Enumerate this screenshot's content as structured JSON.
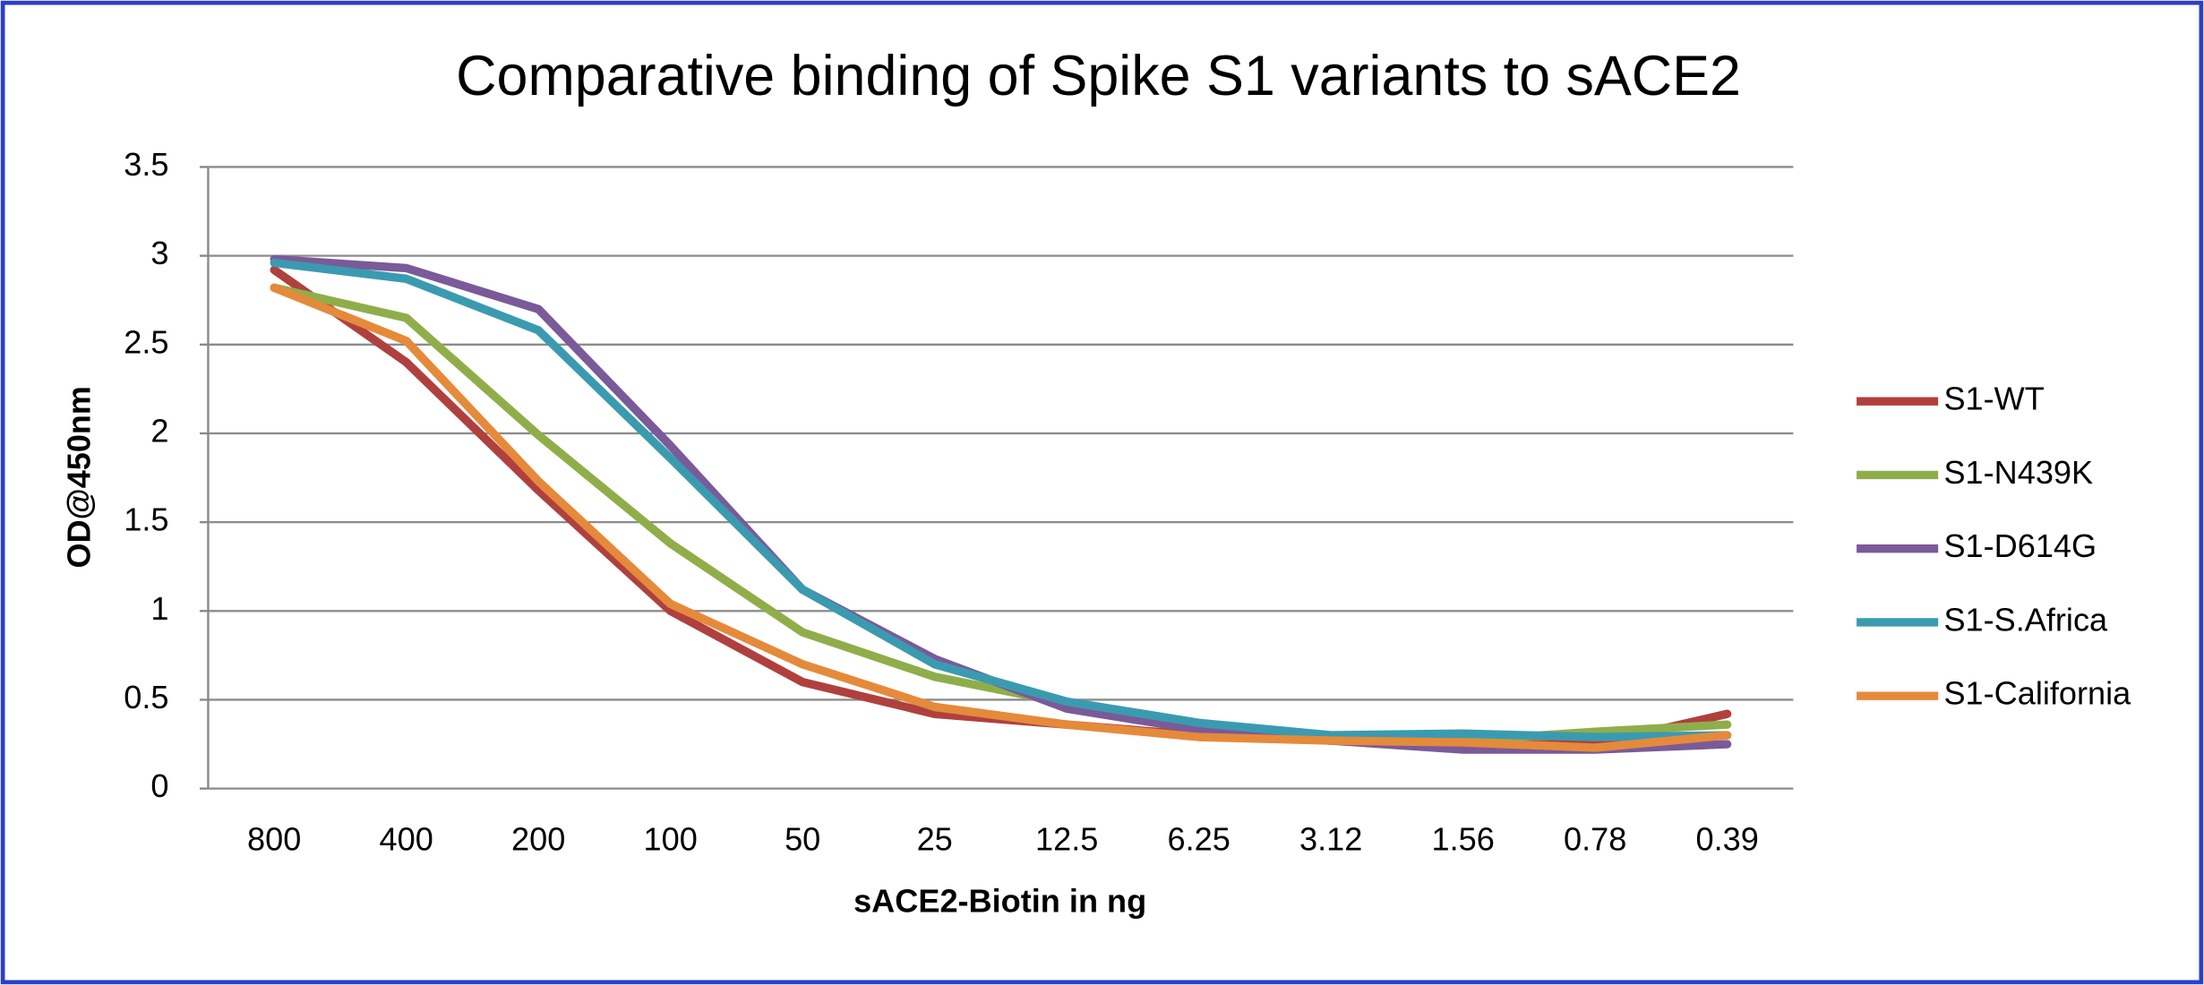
{
  "chart_data": {
    "type": "line",
    "title": "Comparative binding of Spike S1 variants to sACE2",
    "x_label": "sACE2-Biotin in ng",
    "y_label": "OD@450nm",
    "categories": [
      "800",
      "400",
      "200",
      "100",
      "50",
      "25",
      "12.5",
      "6.25",
      "3.12",
      "1.56",
      "0.78",
      "0.39"
    ],
    "series": [
      {
        "name": "S1-WT",
        "color": "#b0403e",
        "values": [
          2.92,
          2.4,
          1.68,
          1.0,
          0.6,
          0.42,
          0.36,
          0.3,
          0.27,
          0.25,
          0.25,
          0.42
        ]
      },
      {
        "name": "S1-N439K",
        "color": "#8fae4a",
        "values": [
          2.82,
          2.65,
          1.99,
          1.38,
          0.88,
          0.63,
          0.48,
          0.33,
          0.28,
          0.27,
          0.32,
          0.36
        ]
      },
      {
        "name": "S1-D614G",
        "color": "#7a5a99",
        "values": [
          2.98,
          2.93,
          2.7,
          1.93,
          1.12,
          0.73,
          0.45,
          0.33,
          0.27,
          0.22,
          0.22,
          0.25
        ]
      },
      {
        "name": "S1-S.Africa",
        "color": "#3a9bb0",
        "values": [
          2.96,
          2.87,
          2.58,
          1.86,
          1.12,
          0.7,
          0.49,
          0.37,
          0.3,
          0.31,
          0.29,
          0.3
        ]
      },
      {
        "name": "S1-California",
        "color": "#e58a3a",
        "values": [
          2.82,
          2.52,
          1.73,
          1.04,
          0.7,
          0.46,
          0.36,
          0.29,
          0.27,
          0.26,
          0.23,
          0.3
        ]
      }
    ],
    "ylim": [
      0,
      3.5
    ],
    "yticks": [
      0,
      0.5,
      1,
      1.5,
      2,
      2.5,
      3,
      3.5
    ],
    "grid": true,
    "legend": "right"
  }
}
